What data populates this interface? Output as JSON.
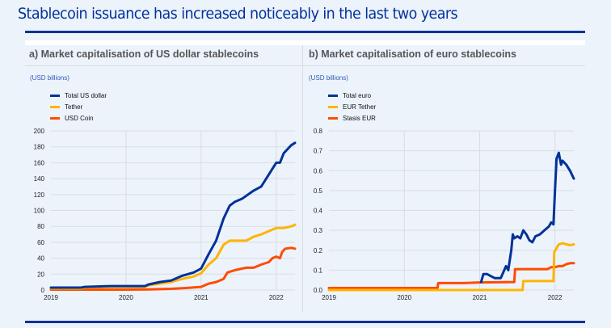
{
  "title": "Stablecoin issuance has increased noticeably in the last two years",
  "colors": {
    "total": "#003299",
    "tether": "#ffb400",
    "second": "#ff4b00",
    "grid": "#d9dde3",
    "rule": "#003299"
  },
  "chart_data": [
    {
      "type": "line",
      "title": "a) Market capitalisation of US dollar stablecoins",
      "ylabel": "(USD billions)",
      "xlabel": "",
      "xlim": [
        2019.0,
        2022.25
      ],
      "ylim": [
        0,
        200
      ],
      "yticks": [
        "0",
        "20",
        "40",
        "60",
        "80",
        "100",
        "120",
        "140",
        "160",
        "180",
        "200"
      ],
      "ytick_values": [
        0,
        20,
        40,
        60,
        80,
        100,
        120,
        140,
        160,
        180,
        200
      ],
      "xticks": [
        "2019",
        "2020",
        "2021",
        "2022"
      ],
      "xtick_values": [
        2019,
        2020,
        2021,
        2022
      ],
      "grid": true,
      "legend_position": "top-left",
      "series": [
        {
          "name": "Total US dollar",
          "color_key": "total",
          "x": [
            2019.0,
            2019.4,
            2019.45,
            2019.8,
            2020.0,
            2020.25,
            2020.3,
            2020.45,
            2020.6,
            2020.75,
            2020.9,
            2021.0,
            2021.1,
            2021.2,
            2021.3,
            2021.38,
            2021.45,
            2021.55,
            2021.7,
            2021.8,
            2021.9,
            2022.0,
            2022.05,
            2022.1,
            2022.2,
            2022.25
          ],
          "y": [
            3,
            3,
            4,
            5,
            5,
            5,
            7,
            10,
            12,
            18,
            22,
            27,
            45,
            62,
            90,
            106,
            111,
            115,
            125,
            130,
            145,
            160,
            160,
            172,
            182,
            185
          ]
        },
        {
          "name": "Tether",
          "color_key": "tether",
          "x": [
            2019.0,
            2019.4,
            2019.45,
            2019.8,
            2020.0,
            2020.25,
            2020.3,
            2020.45,
            2020.6,
            2020.75,
            2020.9,
            2021.0,
            2021.1,
            2021.2,
            2021.3,
            2021.38,
            2021.5,
            2021.6,
            2021.7,
            2021.8,
            2021.9,
            2022.0,
            2022.1,
            2022.2,
            2022.25
          ],
          "y": [
            2,
            2,
            3,
            4,
            4,
            4,
            6,
            8,
            10,
            14,
            17,
            21,
            32,
            40,
            57,
            62,
            62,
            62,
            67,
            70,
            74,
            78,
            78,
            80,
            82
          ]
        },
        {
          "name": "USD Coin",
          "color_key": "second",
          "x": [
            2019.0,
            2019.5,
            2020.0,
            2020.3,
            2020.6,
            2020.8,
            2021.0,
            2021.1,
            2021.2,
            2021.3,
            2021.35,
            2021.45,
            2021.6,
            2021.7,
            2021.8,
            2021.9,
            2021.95,
            2022.0,
            2022.05,
            2022.08,
            2022.12,
            2022.2,
            2022.25
          ],
          "y": [
            0.5,
            0.5,
            0.5,
            0.8,
            1.5,
            2.5,
            4,
            8,
            10,
            14,
            22,
            25,
            28,
            28,
            32,
            35,
            40,
            42,
            40,
            48,
            52,
            53,
            52
          ]
        }
      ]
    },
    {
      "type": "line",
      "title": "b) Market capitalisation of euro stablecoins",
      "ylabel": "(USD billions)",
      "xlabel": "",
      "xlim": [
        2019.0,
        2022.25
      ],
      "ylim": [
        0,
        0.8
      ],
      "yticks": [
        "0.0",
        "0.1",
        "0.2",
        "0.3",
        "0.4",
        "0.5",
        "0.6",
        "0.7",
        "0.8"
      ],
      "ytick_values": [
        0,
        0.1,
        0.2,
        0.3,
        0.4,
        0.5,
        0.6,
        0.7,
        0.8
      ],
      "xticks": [
        "2019",
        "2020",
        "2021",
        "2022"
      ],
      "xtick_values": [
        2019,
        2020,
        2021,
        2022
      ],
      "grid": true,
      "legend_position": "top-left",
      "series": [
        {
          "name": "Total euro",
          "color_key": "total",
          "x": [
            2021.02,
            2021.05,
            2021.1,
            2021.15,
            2021.2,
            2021.28,
            2021.35,
            2021.38,
            2021.42,
            2021.44,
            2021.46,
            2021.5,
            2021.54,
            2021.58,
            2021.62,
            2021.66,
            2021.7,
            2021.74,
            2021.8,
            2021.86,
            2021.92,
            2021.95,
            2021.98,
            2022.0,
            2022.02,
            2022.05,
            2022.08,
            2022.1,
            2022.15,
            2022.2,
            2022.25
          ],
          "y": [
            0.04,
            0.08,
            0.08,
            0.07,
            0.06,
            0.06,
            0.12,
            0.1,
            0.2,
            0.28,
            0.26,
            0.27,
            0.26,
            0.3,
            0.28,
            0.25,
            0.24,
            0.27,
            0.28,
            0.3,
            0.32,
            0.34,
            0.33,
            0.5,
            0.66,
            0.69,
            0.63,
            0.65,
            0.63,
            0.6,
            0.56
          ]
        },
        {
          "name": "EUR Tether",
          "color_key": "tether",
          "x": [
            2019.0,
            2021.57,
            2021.58,
            2021.7,
            2021.98,
            2021.99,
            2022.02,
            2022.05,
            2022.1,
            2022.2,
            2022.25
          ],
          "y": [
            0.0,
            0.0,
            0.045,
            0.045,
            0.045,
            0.19,
            0.21,
            0.23,
            0.235,
            0.225,
            0.23
          ]
        },
        {
          "name": "Stasis EUR",
          "color_key": "second",
          "x": [
            2019.0,
            2020.44,
            2020.45,
            2020.8,
            2021.0,
            2021.46,
            2021.47,
            2021.7,
            2021.9,
            2021.95,
            2022.0,
            2022.05,
            2022.1,
            2022.15,
            2022.2,
            2022.25
          ],
          "y": [
            0.01,
            0.01,
            0.035,
            0.035,
            0.038,
            0.04,
            0.105,
            0.105,
            0.105,
            0.115,
            0.115,
            0.12,
            0.12,
            0.13,
            0.135,
            0.135
          ]
        }
      ]
    }
  ]
}
